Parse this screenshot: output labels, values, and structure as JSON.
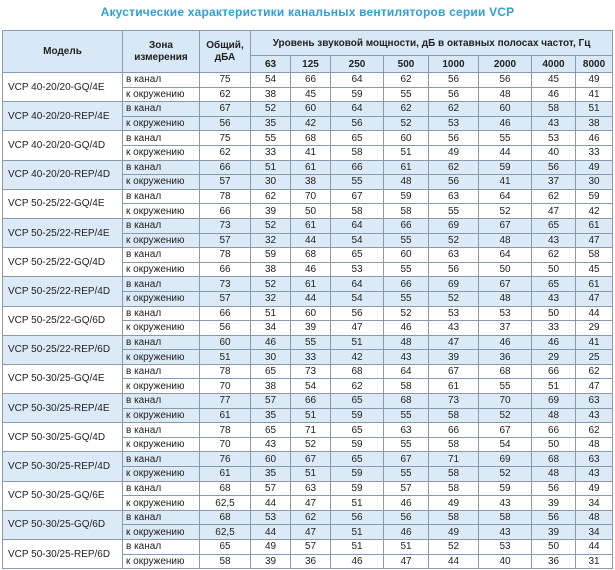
{
  "title": "Акустические характеристики канальных вентиляторов  серии VCP",
  "header": {
    "model": "Модель",
    "zone": "Зона измерения",
    "total": "Общий, дБА",
    "bands": "Уровень звуковой мощности, дБ в октавных полосах частот, Гц",
    "frequencies": [
      "63",
      "125",
      "250",
      "500",
      "1000",
      "2000",
      "4000",
      "8000"
    ]
  },
  "models": [
    {
      "name": "VCP 40-20/20-GQ/4E",
      "rows": [
        [
          "в канал",
          "75",
          "54",
          "66",
          "64",
          "62",
          "56",
          "56",
          "45",
          "49"
        ],
        [
          "к окружению",
          "62",
          "38",
          "45",
          "59",
          "55",
          "56",
          "48",
          "46",
          "41"
        ]
      ]
    },
    {
      "name": "VCP 40-20/20-REP/4E",
      "rows": [
        [
          "в канал",
          "67",
          "52",
          "60",
          "64",
          "62",
          "62",
          "60",
          "58",
          "51"
        ],
        [
          "к окружению",
          "56",
          "35",
          "42",
          "56",
          "52",
          "53",
          "46",
          "43",
          "38"
        ]
      ]
    },
    {
      "name": "VCP 40-20/20-GQ/4D",
      "rows": [
        [
          "в канал",
          "75",
          "55",
          "68",
          "65",
          "60",
          "56",
          "55",
          "53",
          "46"
        ],
        [
          "к окружению",
          "62",
          "33",
          "41",
          "58",
          "51",
          "49",
          "44",
          "40",
          "33"
        ]
      ]
    },
    {
      "name": "VCP 40-20/20-REP/4D",
      "rows": [
        [
          "в канал",
          "66",
          "51",
          "61",
          "66",
          "61",
          "62",
          "59",
          "56",
          "49"
        ],
        [
          "к окружению",
          "57",
          "30",
          "38",
          "55",
          "48",
          "56",
          "41",
          "37",
          "30"
        ]
      ]
    },
    {
      "name": "VCP 50-25/22-GQ/4E",
      "rows": [
        [
          "в канал",
          "78",
          "62",
          "70",
          "67",
          "59",
          "63",
          "64",
          "62",
          "59"
        ],
        [
          "к окружению",
          "66",
          "39",
          "50",
          "58",
          "58",
          "55",
          "52",
          "47",
          "42"
        ]
      ]
    },
    {
      "name": "VCP 50-25/22-REP/4E",
      "rows": [
        [
          "в канал",
          "73",
          "52",
          "61",
          "64",
          "66",
          "69",
          "67",
          "65",
          "61"
        ],
        [
          "к окружению",
          "57",
          "32",
          "44",
          "54",
          "55",
          "52",
          "48",
          "43",
          "47"
        ]
      ]
    },
    {
      "name": "VCP 50-25/22-GQ/4D",
      "rows": [
        [
          "в канал",
          "78",
          "59",
          "68",
          "65",
          "60",
          "63",
          "64",
          "62",
          "58"
        ],
        [
          "к окружению",
          "66",
          "38",
          "46",
          "53",
          "55",
          "56",
          "50",
          "50",
          "45"
        ]
      ]
    },
    {
      "name": "VCP 50-25/22-REP/4D",
      "rows": [
        [
          "в канал",
          "73",
          "52",
          "61",
          "64",
          "66",
          "69",
          "67",
          "65",
          "61"
        ],
        [
          "к окружению",
          "57",
          "32",
          "44",
          "54",
          "55",
          "52",
          "48",
          "43",
          "47"
        ]
      ]
    },
    {
      "name": "VCP 50-25/22-GQ/6D",
      "rows": [
        [
          "в канал",
          "66",
          "51",
          "60",
          "56",
          "52",
          "53",
          "53",
          "50",
          "44"
        ],
        [
          "к окружению",
          "56",
          "34",
          "39",
          "47",
          "46",
          "43",
          "37",
          "33",
          "29"
        ]
      ]
    },
    {
      "name": "VCP 50-25/22-REP/6D",
      "rows": [
        [
          "в канал",
          "60",
          "46",
          "55",
          "51",
          "48",
          "47",
          "46",
          "46",
          "41"
        ],
        [
          "к окружению",
          "51",
          "30",
          "33",
          "42",
          "43",
          "39",
          "36",
          "29",
          "25"
        ]
      ]
    },
    {
      "name": "VCP 50-30/25-GQ/4E",
      "rows": [
        [
          "в канал",
          "78",
          "65",
          "73",
          "68",
          "64",
          "67",
          "68",
          "66",
          "62"
        ],
        [
          "к окружению",
          "70",
          "38",
          "54",
          "62",
          "58",
          "61",
          "55",
          "51",
          "47"
        ]
      ]
    },
    {
      "name": "VCP 50-30/25-REP/4E",
      "rows": [
        [
          "в канал",
          "77",
          "57",
          "66",
          "65",
          "68",
          "73",
          "70",
          "69",
          "63"
        ],
        [
          "к окружению",
          "61",
          "35",
          "51",
          "59",
          "55",
          "58",
          "52",
          "48",
          "43"
        ]
      ]
    },
    {
      "name": "VCP 50-30/25-GQ/4D",
      "rows": [
        [
          "в канал",
          "78",
          "65",
          "71",
          "65",
          "63",
          "66",
          "67",
          "66",
          "62"
        ],
        [
          "к окружению",
          "70",
          "43",
          "52",
          "59",
          "55",
          "58",
          "54",
          "50",
          "48"
        ]
      ]
    },
    {
      "name": "VCP 50-30/25-REP/4D",
      "rows": [
        [
          "в канал",
          "76",
          "60",
          "67",
          "65",
          "67",
          "71",
          "69",
          "68",
          "63"
        ],
        [
          "к окружению",
          "61",
          "35",
          "51",
          "59",
          "55",
          "58",
          "52",
          "48",
          "43"
        ]
      ]
    },
    {
      "name": "VCP 50-30/25-GQ/6E",
      "rows": [
        [
          "в канал",
          "68",
          "57",
          "63",
          "59",
          "57",
          "58",
          "59",
          "56",
          "49"
        ],
        [
          "к окружению",
          "62,5",
          "44",
          "47",
          "51",
          "46",
          "49",
          "43",
          "39",
          "34"
        ]
      ]
    },
    {
      "name": "VCP 50-30/25-GQ/6D",
      "rows": [
        [
          "в канал",
          "68",
          "53",
          "62",
          "56",
          "56",
          "58",
          "58",
          "56",
          "48"
        ],
        [
          "к окружению",
          "62,5",
          "44",
          "47",
          "51",
          "46",
          "49",
          "43",
          "39",
          "34"
        ]
      ]
    },
    {
      "name": "VCP 50-30/25-REP/6D",
      "rows": [
        [
          "в канал",
          "65",
          "49",
          "57",
          "51",
          "51",
          "52",
          "53",
          "50",
          "44"
        ],
        [
          "к окружению",
          "58",
          "39",
          "36",
          "46",
          "47",
          "44",
          "40",
          "36",
          "31"
        ]
      ]
    }
  ]
}
